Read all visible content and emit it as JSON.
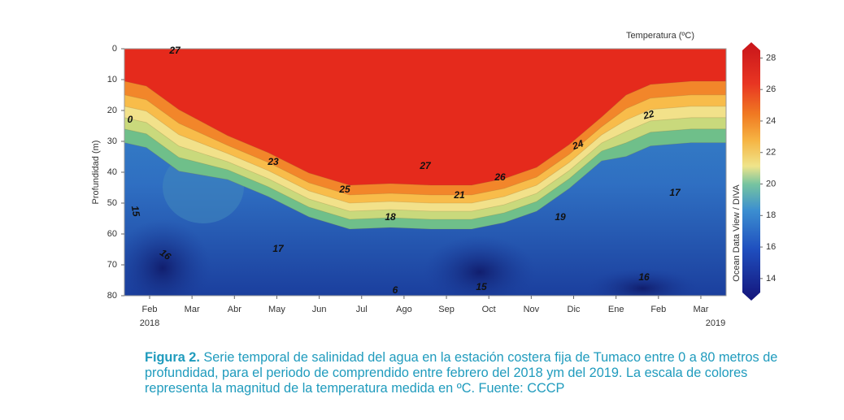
{
  "chart_data": {
    "type": "contour",
    "y_label": "Profundidad (m)",
    "categories": [
      "Feb",
      "Mar",
      "Abr",
      "May",
      "Jun",
      "Jul",
      "Ago",
      "Sep",
      "Oct",
      "Nov",
      "Dic",
      "Ene",
      "Feb",
      "Mar"
    ],
    "year_labels": [
      "2018",
      "2019"
    ],
    "ylim": [
      0,
      80
    ],
    "yticks": [
      0,
      10,
      20,
      30,
      40,
      50,
      60,
      70,
      80
    ],
    "y_inverted": true,
    "colorbar_title": "Temperatura (ºC)",
    "colorbar_side_label": "Ocean Data View / DIVA",
    "clim": [
      12.6,
      29
    ],
    "cticks": [
      14,
      16,
      18,
      20,
      22,
      24,
      26,
      28
    ],
    "contour_labels": [
      27,
      0,
      23,
      25,
      27,
      21,
      26,
      24,
      22,
      18,
      19,
      17,
      17,
      16,
      15,
      6,
      15,
      16
    ]
  },
  "caption": {
    "label": "Figura 2.",
    "text": "Serie temporal de salinidad del agua en la estación costera fija de Tumaco entre 0 a 80 metros de profundidad, para el periodo de comprendido entre febrero del 2018 ym del 2019. La escala de colores representa la magnitud de la temperatura medida en ºC. Fuente: CCCP"
  }
}
